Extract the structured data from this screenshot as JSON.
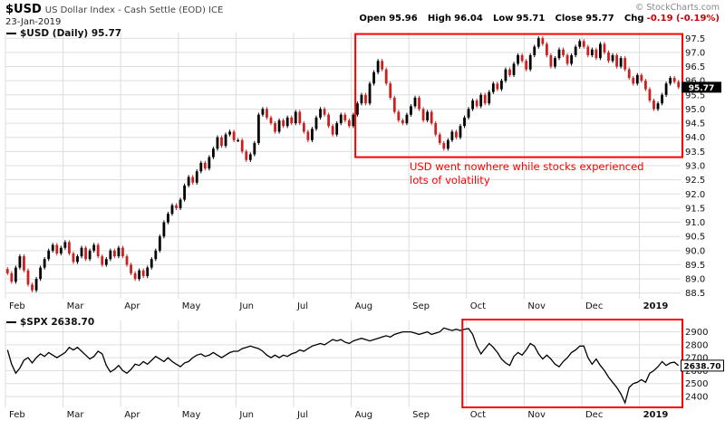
{
  "header": {
    "symbol": "$USD",
    "description": "US Dollar Index - Cash Settle (EOD) ICE",
    "date": "23-Jan-2019",
    "copyright": "© StockCharts.com",
    "quote": [
      {
        "label": "Open",
        "value": "95.96"
      },
      {
        "label": "High",
        "value": "96.04"
      },
      {
        "label": "Low",
        "value": "95.71"
      },
      {
        "label": "Close",
        "value": "95.77"
      },
      {
        "label": "Chg",
        "value": "-0.19 (-0.19%)"
      }
    ]
  },
  "main_chart": {
    "legend": "$USD (Daily) 95.77",
    "last_price_label": "95.77",
    "annotation_line1": "USD went nowhere while stocks experienced",
    "annotation_line2": "lots of volatility"
  },
  "lower_chart": {
    "legend": "$SPX 2638.70",
    "last_price_label": "2638.70"
  },
  "chart_data": [
    {
      "type": "candlestick",
      "symbol": "$USD",
      "timeframe": "Daily",
      "title": "US Dollar Index - Cash Settle (EOD) ICE",
      "ylim": [
        88.3,
        97.7
      ],
      "y_ticks": [
        88.5,
        89.0,
        89.5,
        90.0,
        90.5,
        91.0,
        91.5,
        92.0,
        92.5,
        93.0,
        93.5,
        94.0,
        94.5,
        95.0,
        95.5,
        96.0,
        96.5,
        97.0,
        97.5
      ],
      "x_months": [
        {
          "label": "Feb",
          "index": 0
        },
        {
          "label": "Mar",
          "index": 14
        },
        {
          "label": "Apr",
          "index": 28
        },
        {
          "label": "May",
          "index": 42
        },
        {
          "label": "Jun",
          "index": 56
        },
        {
          "label": "Jul",
          "index": 70
        },
        {
          "label": "Aug",
          "index": 84
        },
        {
          "label": "Sep",
          "index": 98
        },
        {
          "label": "Oct",
          "index": 112
        },
        {
          "label": "Nov",
          "index": 126
        },
        {
          "label": "Dec",
          "index": 140
        },
        {
          "label": "2019",
          "index": 154,
          "bold": true
        }
      ],
      "last": 95.77,
      "closes": [
        89.2,
        88.9,
        89.4,
        89.8,
        89.3,
        88.8,
        88.6,
        89.0,
        89.4,
        89.7,
        90.0,
        90.2,
        89.9,
        90.1,
        90.3,
        89.9,
        89.6,
        89.8,
        90.1,
        89.7,
        90.0,
        90.2,
        89.8,
        89.5,
        89.7,
        90.0,
        89.8,
        90.1,
        89.8,
        89.5,
        89.2,
        89.0,
        89.3,
        89.1,
        89.4,
        89.7,
        90.0,
        90.5,
        91.0,
        91.3,
        91.6,
        91.5,
        91.8,
        92.3,
        92.6,
        92.4,
        92.8,
        93.1,
        92.9,
        93.3,
        93.6,
        94.0,
        93.7,
        94.1,
        94.2,
        93.9,
        93.9,
        93.5,
        93.2,
        93.4,
        93.8,
        94.8,
        95.0,
        94.7,
        94.5,
        94.2,
        94.6,
        94.4,
        94.7,
        94.5,
        94.9,
        94.5,
        94.2,
        93.9,
        94.3,
        94.7,
        95.0,
        94.8,
        94.4,
        94.1,
        94.5,
        94.8,
        94.6,
        94.4,
        94.8,
        95.2,
        95.5,
        95.2,
        95.9,
        96.3,
        96.7,
        96.4,
        95.9,
        95.4,
        94.9,
        94.6,
        94.5,
        94.8,
        95.1,
        95.4,
        95.0,
        94.6,
        94.9,
        94.5,
        94.1,
        93.8,
        93.6,
        93.9,
        94.2,
        94.0,
        94.4,
        94.7,
        95.0,
        95.3,
        95.1,
        95.5,
        95.2,
        95.6,
        95.9,
        95.7,
        96.0,
        96.4,
        96.2,
        96.6,
        96.9,
        96.7,
        96.4,
        96.9,
        97.2,
        97.5,
        97.3,
        96.9,
        96.5,
        96.8,
        97.1,
        96.9,
        96.6,
        96.9,
        97.2,
        97.4,
        97.2,
        96.9,
        97.1,
        96.8,
        97.3,
        97.0,
        96.7,
        96.9,
        96.5,
        96.8,
        96.4,
        96.1,
        95.9,
        96.2,
        96.0,
        95.7,
        95.3,
        95.0,
        95.2,
        95.5,
        95.9,
        96.1,
        95.96,
        95.77
      ],
      "highlight_box": {
        "start_index": 85,
        "price_top": 97.65,
        "price_bottom": 93.3
      }
    },
    {
      "type": "line",
      "symbol": "$SPX",
      "ylim": [
        2330,
        2960
      ],
      "y_ticks": [
        2400,
        2500,
        2600,
        2700,
        2800,
        2900
      ],
      "last": 2638.7,
      "closes": [
        2760,
        2650,
        2580,
        2620,
        2680,
        2700,
        2660,
        2700,
        2730,
        2710,
        2740,
        2720,
        2700,
        2720,
        2740,
        2780,
        2760,
        2780,
        2750,
        2720,
        2690,
        2710,
        2750,
        2730,
        2640,
        2590,
        2610,
        2640,
        2600,
        2580,
        2610,
        2650,
        2640,
        2670,
        2650,
        2680,
        2710,
        2690,
        2670,
        2700,
        2670,
        2650,
        2630,
        2660,
        2670,
        2700,
        2720,
        2730,
        2710,
        2720,
        2740,
        2720,
        2700,
        2720,
        2740,
        2750,
        2750,
        2770,
        2780,
        2790,
        2780,
        2770,
        2750,
        2720,
        2700,
        2720,
        2700,
        2720,
        2710,
        2730,
        2740,
        2760,
        2750,
        2770,
        2790,
        2800,
        2810,
        2800,
        2820,
        2840,
        2830,
        2840,
        2820,
        2810,
        2830,
        2840,
        2850,
        2840,
        2830,
        2840,
        2850,
        2860,
        2870,
        2860,
        2880,
        2890,
        2900,
        2900,
        2900,
        2890,
        2880,
        2890,
        2900,
        2880,
        2890,
        2900,
        2930,
        2920,
        2910,
        2920,
        2910,
        2920,
        2925,
        2880,
        2790,
        2730,
        2770,
        2810,
        2780,
        2740,
        2690,
        2660,
        2640,
        2710,
        2740,
        2720,
        2760,
        2810,
        2790,
        2730,
        2690,
        2720,
        2690,
        2650,
        2630,
        2670,
        2700,
        2740,
        2760,
        2790,
        2790,
        2700,
        2650,
        2690,
        2640,
        2600,
        2550,
        2510,
        2470,
        2420,
        2351,
        2470,
        2500,
        2510,
        2530,
        2510,
        2580,
        2600,
        2630,
        2670,
        2640,
        2660,
        2665,
        2638.7
      ],
      "highlight_box": {
        "start_index": 111
      }
    }
  ],
  "colors": {
    "candle_up": "#000000",
    "candle_down": "#cc2020",
    "line": "#000000",
    "grid": "#dddddd",
    "annotation_red": "#ff0000",
    "axis_text": "#111111",
    "badge_dark_bg": "#000000",
    "badge_light_bg": "#ffffff"
  }
}
